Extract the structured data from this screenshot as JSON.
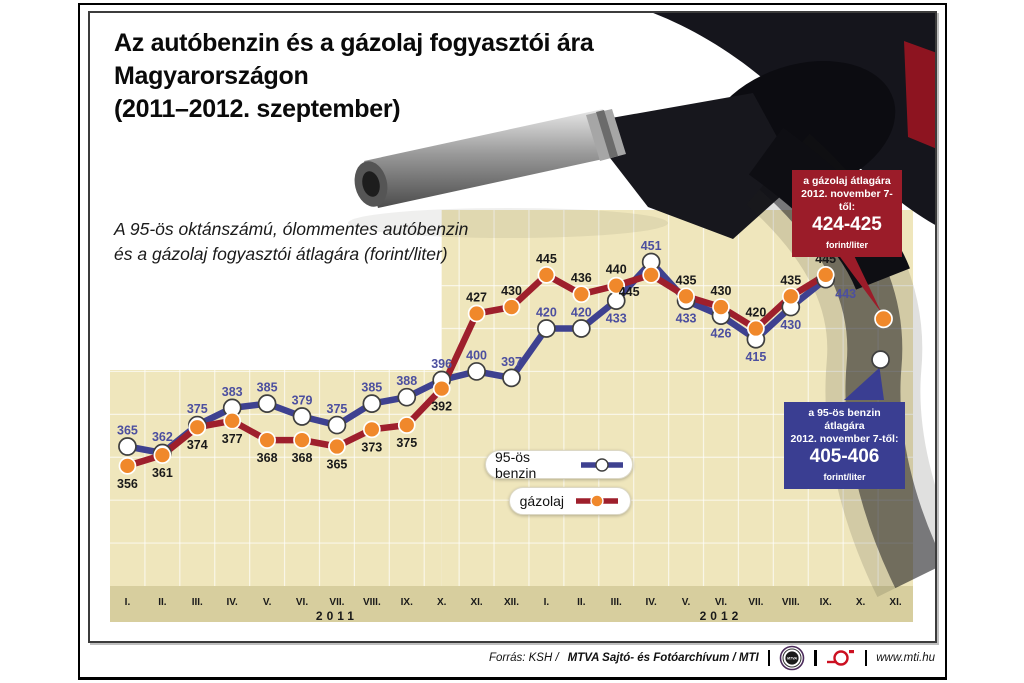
{
  "header": {
    "title_lines": [
      "Az autóbenzin és a gázolaj fogyasztói ára",
      "Magyarországon",
      "(2011–2012. szeptember)"
    ],
    "subtitle_lines": [
      "A 95-ös oktánszámú, ólommentes autóbenzin",
      "és a gázolaj fogyasztói átlagára (forint/liter)"
    ]
  },
  "chart_data": {
    "type": "line",
    "unit": "forint/liter",
    "x_axis": {
      "groups": [
        {
          "year": "2011",
          "ticks": [
            "I.",
            "II.",
            "III.",
            "IV.",
            "V.",
            "VI.",
            "VII.",
            "VIII.",
            "IX.",
            "X.",
            "XI.",
            "XII."
          ]
        },
        {
          "year": "2012",
          "ticks": [
            "I.",
            "II.",
            "III.",
            "IV.",
            "V.",
            "VI.",
            "VII.",
            "VIII.",
            "IX.",
            "X.",
            "XI."
          ]
        }
      ]
    },
    "series": [
      {
        "name": "95-ös benzin",
        "color": "#3E4190",
        "marker_fill": "#ffffff",
        "marker_stroke": "#3f3f3f",
        "label_color": "#4C4F9F",
        "values": [
          365,
          362,
          375,
          383,
          385,
          379,
          375,
          385,
          388,
          396,
          400,
          397,
          420,
          420,
          433,
          451,
          433,
          426,
          415,
          430,
          443
        ],
        "label_pos": [
          "a",
          "a",
          "a",
          "a",
          "a",
          "a",
          "a",
          "a",
          "a",
          "a",
          "a",
          "a",
          "a",
          "a",
          "b",
          "a",
          "b",
          "b",
          "b",
          "b",
          "br"
        ]
      },
      {
        "name": "gázolaj",
        "color": "#9E1F2C",
        "marker_fill": "#F0882B",
        "marker_stroke": "#ffffff",
        "label_color": "#1a1a1a",
        "values": [
          356,
          361,
          374,
          377,
          368,
          368,
          365,
          373,
          375,
          392,
          427,
          430,
          445,
          436,
          440,
          445,
          435,
          430,
          420,
          435,
          445
        ],
        "label_pos": [
          "b",
          "b",
          "b",
          "b",
          "b",
          "b",
          "b",
          "b",
          "b",
          "b",
          "a",
          "a",
          "a",
          "a",
          "a",
          "bl",
          "a",
          "a",
          "a",
          "a",
          "a"
        ]
      }
    ],
    "forecast_points": [
      {
        "series": "gázolaj",
        "tick_index": 22,
        "value": 424.5
      },
      {
        "series": "95-ös benzin",
        "tick_index": 22,
        "value": 405.5
      }
    ],
    "ylim": [
      300,
      460
    ],
    "grid_step": 20,
    "grid_on": true,
    "legend_position": "inside-bottom-center",
    "plot_bg": "#EFE6BC",
    "axis_band_bg": "#D7CE9E",
    "grid_color": "#ffffff"
  },
  "legend": {
    "items": [
      {
        "label": "95-ös benzin"
      },
      {
        "label": "gázolaj"
      }
    ]
  },
  "callouts": {
    "diesel": {
      "line1": "a gázolaj átlagára",
      "line2": "2012. november 7-től:",
      "value": "424-425",
      "unit": "forint/liter",
      "bg": "#9B1C29"
    },
    "benzin": {
      "line1": "a 95-ös benzin átlagára",
      "line2": "2012. november 7-től:",
      "value": "405-406",
      "unit": "forint/liter",
      "bg": "#3A3E92"
    }
  },
  "footer": {
    "source_italic": "Forrás: KSH /",
    "source_bold": "MTVA Sajtó- és Fotóarchívum / MTI",
    "mtva_logo": "MTVA",
    "website": "www.mti.hu"
  }
}
